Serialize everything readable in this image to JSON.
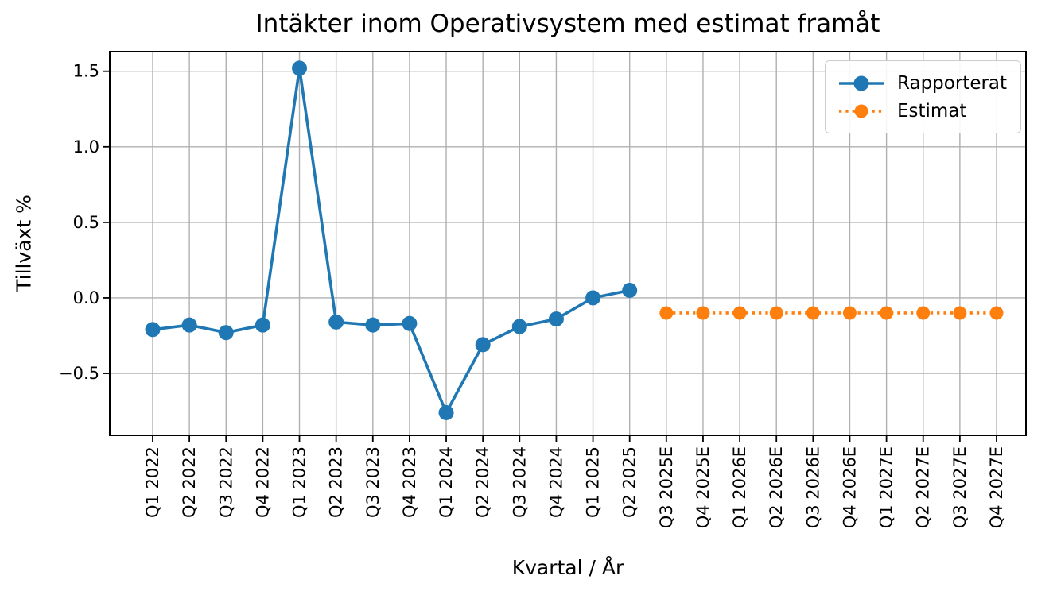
{
  "figure": {
    "background": "#ffffff",
    "text_color": "#000000"
  },
  "chart_data": {
    "type": "line",
    "title": "Intäkter inom Operativsystem med estimat framåt",
    "xlabel": "Kvartal / År",
    "ylabel": "Tillväxt %",
    "categories": [
      "Q1 2022",
      "Q2 2022",
      "Q3 2022",
      "Q4 2022",
      "Q1 2023",
      "Q2 2023",
      "Q3 2023",
      "Q4 2023",
      "Q1 2024",
      "Q2 2024",
      "Q3 2024",
      "Q4 2024",
      "Q1 2025",
      "Q2 2025",
      "Q3 2025E",
      "Q4 2025E",
      "Q1 2026E",
      "Q2 2026E",
      "Q3 2026E",
      "Q4 2026E",
      "Q1 2027E",
      "Q2 2027E",
      "Q3 2027E",
      "Q4 2027E"
    ],
    "series": [
      {
        "name": "Rapporterat",
        "color": "#1f77b4",
        "line_style": "solid",
        "marker": "circle",
        "start_index": 0,
        "values": [
          -0.21,
          -0.18,
          -0.23,
          -0.18,
          1.52,
          -0.16,
          -0.18,
          -0.17,
          -0.76,
          -0.31,
          -0.19,
          -0.14,
          0.0,
          0.05
        ]
      },
      {
        "name": "Estimat",
        "color": "#ff7f0e",
        "line_style": "dotted",
        "marker": "circle",
        "start_index": 14,
        "values": [
          -0.1,
          -0.1,
          -0.1,
          -0.1,
          -0.1,
          -0.1,
          -0.1,
          -0.1,
          -0.1,
          -0.1
        ]
      }
    ],
    "yticks": [
      1.5,
      1.0,
      0.5,
      0.0,
      -0.5
    ],
    "ytick_labels": [
      "1.5",
      "1.0",
      "0.5",
      "0.0",
      "−0.5"
    ],
    "ylim": [
      -0.91,
      1.63
    ],
    "grid": true,
    "grid_color": "#b0b0b0",
    "legend": {
      "position": "upper right",
      "entries": [
        "Rapporterat",
        "Estimat"
      ]
    }
  }
}
